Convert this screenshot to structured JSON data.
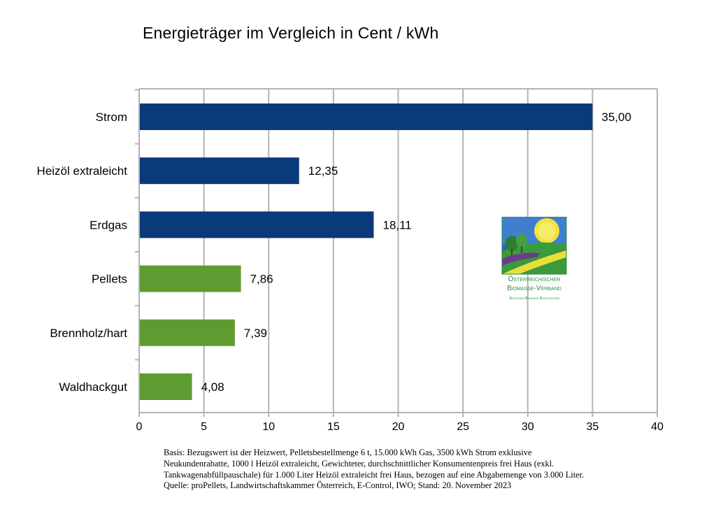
{
  "chart_data": {
    "type": "bar",
    "orientation": "horizontal",
    "title": "Energieträger im Vergleich in Cent / kWh",
    "categories": [
      "Strom",
      "Heizöl extraleicht",
      "Erdgas",
      "Pellets",
      "Brennholz/hart",
      "Waldhackgut"
    ],
    "values": [
      35.0,
      12.35,
      18.11,
      7.86,
      7.39,
      4.08
    ],
    "value_labels": [
      "35,00",
      "12,35",
      "18,11",
      "7,86",
      "7,39",
      "4,08"
    ],
    "bar_colors": [
      "#0b3a7a",
      "#0b3a7a",
      "#0b3a7a",
      "#5e9c31",
      "#5e9c31",
      "#5e9c31"
    ],
    "xlim": [
      0,
      40
    ],
    "xticks": [
      0,
      5,
      10,
      15,
      20,
      25,
      30,
      35,
      40
    ],
    "grid": "vertical",
    "xlabel": "",
    "ylabel": ""
  },
  "logo": {
    "line1": "Österreichischer",
    "line2": "Biomasse-Verband",
    "line3": "Austrian Biomass Association"
  },
  "footnote": {
    "line1": "Basis: Bezugswert ist der Heizwert, Pelletsbestellmenge 6 t, 15.000 kWh Gas, 3500 kWh Strom exklusive",
    "line2": "Neukundenrabatte, 1000 l Heizöl extraleicht, Gewichteter, durchschnittlicher Konsumentenpreis frei Haus (exkl.",
    "line3": "Tankwagenabfüllpauschale) für 1.000 Liter Heizöl extraleicht frei Haus, bezogen auf eine Abgabemenge von 3.000 Liter.",
    "line4": "Quelle: proPellets, Landwirtschaftskammer Österreich, E-Control, IWO; Stand: 20. November 2023"
  }
}
